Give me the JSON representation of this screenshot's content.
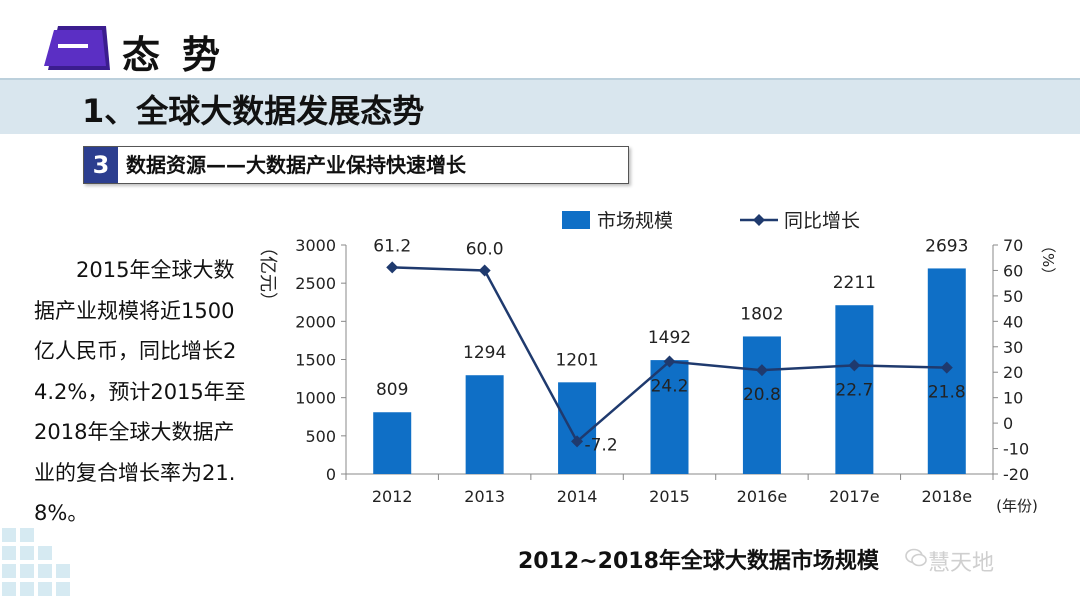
{
  "header": {
    "badge_label": "一",
    "title": "态势"
  },
  "section": {
    "title": "1、全球大数据发展态势"
  },
  "subtitle": {
    "number": "3",
    "text": "数据资源——大数据产业保持快速增长"
  },
  "description": "2015年全球大数据产业规模将近1500亿人民币，同比增长24.2%，预计2015年至2018年全球大数据产业的复合增长率为21.8%。",
  "caption": "2012~2018年全球大数据市场规模",
  "watermark": "慧天地",
  "colors": {
    "bar": "#0f6fc6",
    "line": "#1f3a6e",
    "band": "#d9e6ee",
    "badge": "#5b2fc4"
  },
  "chart_data": {
    "type": "bar+line",
    "categories": [
      "2012",
      "2013",
      "2014",
      "2015",
      "2016e",
      "2017e",
      "2018e"
    ],
    "series": [
      {
        "name": "市场规模",
        "type": "bar",
        "axis": "left",
        "values": [
          809,
          1294,
          1201,
          1492,
          1802,
          2211,
          2693
        ],
        "labels": [
          "809",
          "1294",
          "1201",
          "1492",
          "1802",
          "2211",
          "2693"
        ]
      },
      {
        "name": "同比增长",
        "type": "line",
        "axis": "right",
        "values": [
          61.2,
          60.0,
          -7.2,
          24.2,
          20.8,
          22.7,
          21.8
        ],
        "labels": [
          "61.2",
          "60.0",
          "-7.2",
          "24.2",
          "20.8",
          "22.7",
          "21.8"
        ]
      }
    ],
    "left_axis": {
      "label": "（亿元）",
      "min": 0,
      "max": 3000,
      "ticks": [
        "0",
        "500",
        "1000",
        "1500",
        "2000",
        "2500",
        "3000"
      ]
    },
    "right_axis": {
      "label": "（%）",
      "min": -20,
      "max": 70,
      "ticks": [
        "-20",
        "-10",
        "0",
        "10",
        "20",
        "30",
        "40",
        "50",
        "60",
        "70"
      ]
    },
    "x_axis_unit": "(年份)",
    "legend": {
      "placement": "top",
      "bar_label": "市场规模",
      "line_label": "同比增长"
    }
  }
}
